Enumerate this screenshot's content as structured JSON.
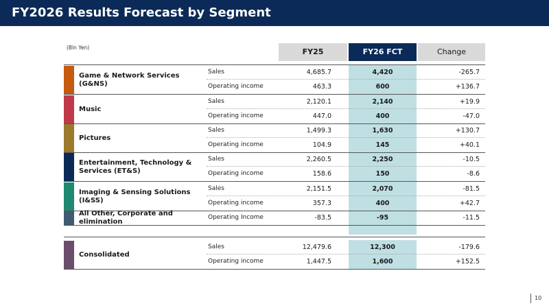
{
  "header": {
    "title": "FY2026 Results Forecast by Segment"
  },
  "unit_note": "(Bln Yen)",
  "columns": {
    "fy25": "FY25",
    "fy26": "FY26 FCT",
    "change": "Change"
  },
  "segments": [
    {
      "name": "Game & Network Services (G&NS)",
      "color": "#c55a11",
      "rows": [
        {
          "label": "Sales",
          "fy25": "4,685.7",
          "fy26": "4,420",
          "change": "-265.7"
        },
        {
          "label": "Operating income",
          "fy25": "463.3",
          "fy26": "600",
          "change": "+136.7"
        }
      ]
    },
    {
      "name": "Music",
      "color": "#c0394b",
      "rows": [
        {
          "label": "Sales",
          "fy25": "2,120.1",
          "fy26": "2,140",
          "change": "+19.9"
        },
        {
          "label": "Operating income",
          "fy25": "447.0",
          "fy26": "400",
          "change": "-47.0"
        }
      ]
    },
    {
      "name": "Pictures",
      "color": "#9b7a2e",
      "rows": [
        {
          "label": "Sales",
          "fy25": "1,499.3",
          "fy26": "1,630",
          "change": "+130.7"
        },
        {
          "label": "Operating income",
          "fy25": "104.9",
          "fy26": "145",
          "change": "+40.1"
        }
      ]
    },
    {
      "name": "Entertainment, Technology & Services (ET&S)",
      "color": "#0b2a57",
      "rows": [
        {
          "label": "Sales",
          "fy25": "2,260.5",
          "fy26": "2,250",
          "change": "-10.5"
        },
        {
          "label": "Operating income",
          "fy25": "158.6",
          "fy26": "150",
          "change": "-8.6"
        }
      ]
    },
    {
      "name": "Imaging & Sensing Solutions (I&SS)",
      "color": "#1f8a70",
      "rows": [
        {
          "label": "Sales",
          "fy25": "2,151.5",
          "fy26": "2,070",
          "change": "-81.5"
        },
        {
          "label": "Operating income",
          "fy25": "357.3",
          "fy26": "400",
          "change": "+42.7"
        }
      ]
    },
    {
      "name": "All Other, Corporate and elimination",
      "color": "#3f5b72",
      "rows": [
        {
          "label": "Operating Income",
          "fy25": "-83.5",
          "fy26": "-95",
          "change": "-11.5"
        }
      ]
    },
    {
      "name": "Consolidated",
      "color": "#6b4e6b",
      "rows": [
        {
          "label": "Sales",
          "fy25": "12,479.6",
          "fy26": "12,300",
          "change": "-179.6"
        },
        {
          "label": "Operating income",
          "fy25": "1,447.5",
          "fy26": "1,600",
          "change": "+152.5"
        }
      ]
    }
  ],
  "page_number": "10"
}
